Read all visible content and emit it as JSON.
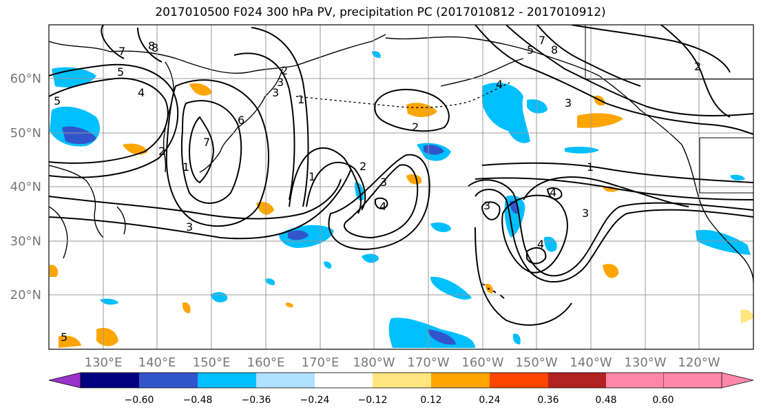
{
  "title": "2017010500 F024 300 hPa PV, precipitation PC (2017010812 - 2017010912)",
  "latitude_labels": [
    "60°N",
    "50°N",
    "40°N",
    "30°N",
    "20°N"
  ],
  "longitude_labels": [
    "130°E",
    "140°E",
    "150°E",
    "160°E",
    "170°E",
    "180°W",
    "170°W",
    "160°W",
    "150°W",
    "140°W",
    "130°W",
    "120°W"
  ],
  "colorbar": {
    "colors": [
      "#9933cc",
      "#000080",
      "#3355cc",
      "#00bfff",
      "#b0e0ff",
      "#ffffff",
      "#ffe680",
      "#ffa500",
      "#ff4500",
      "#b22222",
      "#ff88aa"
    ],
    "tick_labels": [
      "−0.60",
      "−0.48",
      "−0.36",
      "−0.24",
      "−0.12",
      "0.12",
      "0.24",
      "0.36",
      "0.48",
      "0.60"
    ]
  },
  "contour_labels": [
    "1",
    "2",
    "3",
    "4",
    "5",
    "6",
    "7",
    "8",
    "1",
    "2",
    "3",
    "4",
    "3",
    "5",
    "7",
    "8",
    "2",
    "1",
    "3",
    "4",
    "3",
    "4",
    "2",
    "3",
    "7",
    "8",
    "5",
    "4",
    "3",
    "2",
    "1",
    "5"
  ],
  "colors": {
    "contour": "#000000",
    "coast": "#000000",
    "grid": "#999999",
    "label_gray": "#777777"
  }
}
